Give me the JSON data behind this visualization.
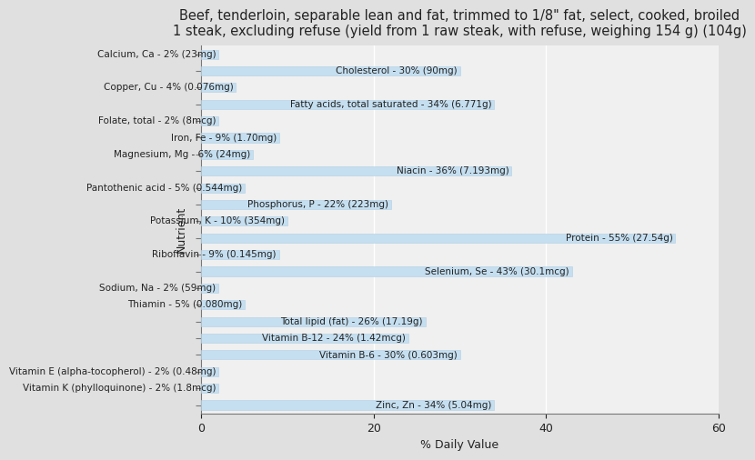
{
  "title_line1": "Beef, tenderloin, separable lean and fat, trimmed to 1/8\" fat, select, cooked, broiled",
  "title_line2": "1 steak, excluding refuse (yield from 1 raw steak, with refuse, weighing 154 g) (104g)",
  "xlabel": "% Daily Value",
  "ylabel": "Nutrient",
  "nutrients": [
    "Calcium, Ca - 2% (23mg)",
    "Cholesterol - 30% (90mg)",
    "Copper, Cu - 4% (0.076mg)",
    "Fatty acids, total saturated - 34% (6.771g)",
    "Folate, total - 2% (8mcg)",
    "Iron, Fe - 9% (1.70mg)",
    "Magnesium, Mg - 6% (24mg)",
    "Niacin - 36% (7.193mg)",
    "Pantothenic acid - 5% (0.544mg)",
    "Phosphorus, P - 22% (223mg)",
    "Potassium, K - 10% (354mg)",
    "Protein - 55% (27.54g)",
    "Riboflavin - 9% (0.145mg)",
    "Selenium, Se - 43% (30.1mcg)",
    "Sodium, Na - 2% (59mg)",
    "Thiamin - 5% (0.080mg)",
    "Total lipid (fat) - 26% (17.19g)",
    "Vitamin B-12 - 24% (1.42mcg)",
    "Vitamin B-6 - 30% (0.603mg)",
    "Vitamin E (alpha-tocopherol) - 2% (0.48mg)",
    "Vitamin K (phylloquinone) - 2% (1.8mcg)",
    "Zinc, Zn - 34% (5.04mg)"
  ],
  "values": [
    2,
    30,
    4,
    34,
    2,
    9,
    6,
    36,
    5,
    22,
    10,
    55,
    9,
    43,
    2,
    5,
    26,
    24,
    30,
    2,
    2,
    34
  ],
  "bar_color": "#c5dff0",
  "bar_edgecolor": "#b0cfe6",
  "background_color": "#e0e0e0",
  "plot_background": "#f0f0f0",
  "xlim": [
    0,
    60
  ],
  "xticks": [
    0,
    20,
    40,
    60
  ],
  "grid_color": "#ffffff",
  "text_color": "#222222",
  "title_fontsize": 10.5,
  "label_fontsize": 7.5,
  "axis_label_fontsize": 9,
  "tick_fontsize": 9,
  "bar_height": 0.55
}
